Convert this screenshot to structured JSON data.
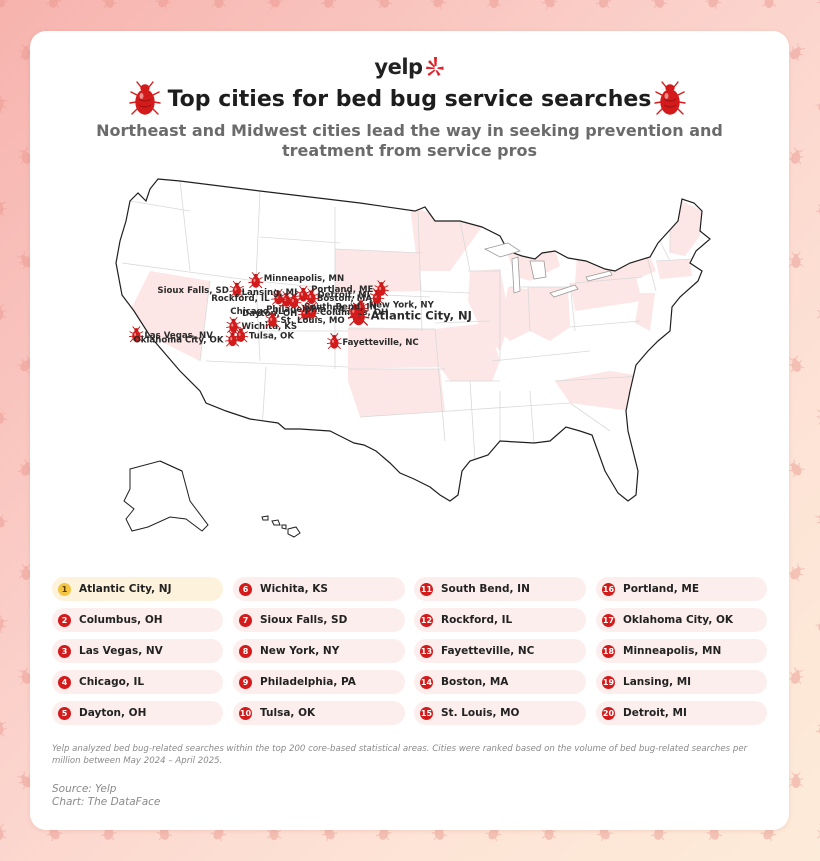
{
  "header": {
    "logo_text": "yelp",
    "title": "Top cities for bed bug service searches",
    "subtitle": "Northeast and Midwest cities lead the way in seeking prevention and treatment from service pros"
  },
  "colors": {
    "accent": "#d31b1b",
    "highlighted_state": "#fde6e6",
    "first_rank_badge": "#f4c542",
    "legend_pill": "#fdeeee",
    "first_legend_pill": "#fdf3dc"
  },
  "map": {
    "marker_icon": "bed-bug-icon",
    "cities": [
      {
        "rank": 1,
        "name": "Atlantic City, NJ",
        "lon": -74.42,
        "lat": 39.36
      },
      {
        "rank": 2,
        "name": "Columbus, OH",
        "lon": -82.99,
        "lat": 39.96
      },
      {
        "rank": 3,
        "name": "Las Vegas, NV",
        "lon": -115.14,
        "lat": 36.17
      },
      {
        "rank": 4,
        "name": "Chicago, IL",
        "lon": -87.63,
        "lat": 41.88
      },
      {
        "rank": 5,
        "name": "Dayton, OH",
        "lon": -84.19,
        "lat": 39.76
      },
      {
        "rank": 6,
        "name": "Wichita, KS",
        "lon": -97.34,
        "lat": 37.69
      },
      {
        "rank": 7,
        "name": "Sioux Falls, SD",
        "lon": -96.73,
        "lat": 43.55
      },
      {
        "rank": 8,
        "name": "New York, NY",
        "lon": -74.01,
        "lat": 40.71
      },
      {
        "rank": 9,
        "name": "Philadelphia, PA",
        "lon": -75.17,
        "lat": 39.95
      },
      {
        "rank": 10,
        "name": "Tulsa, OK",
        "lon": -95.99,
        "lat": 36.15
      },
      {
        "rank": 11,
        "name": "South Bend, IN",
        "lon": -86.25,
        "lat": 41.68
      },
      {
        "rank": 12,
        "name": "Rockford, IL",
        "lon": -89.09,
        "lat": 42.27
      },
      {
        "rank": 13,
        "name": "Fayetteville, NC",
        "lon": -78.88,
        "lat": 35.05
      },
      {
        "rank": 14,
        "name": "Boston, MA",
        "lon": -71.06,
        "lat": 42.36
      },
      {
        "rank": 15,
        "name": "St. Louis, MO",
        "lon": -90.2,
        "lat": 38.63
      },
      {
        "rank": 16,
        "name": "Portland, ME",
        "lon": -70.26,
        "lat": 43.66
      },
      {
        "rank": 17,
        "name": "Oklahoma City, OK",
        "lon": -97.52,
        "lat": 35.47
      },
      {
        "rank": 18,
        "name": "Minneapolis, MN",
        "lon": -93.27,
        "lat": 44.98
      },
      {
        "rank": 19,
        "name": "Lansing, MI",
        "lon": -84.56,
        "lat": 42.73
      },
      {
        "rank": 20,
        "name": "Detroit, MI",
        "lon": -83.05,
        "lat": 42.33
      }
    ]
  },
  "legend": [
    {
      "rank": "1",
      "name": "Atlantic City, NJ"
    },
    {
      "rank": "2",
      "name": "Columbus, OH"
    },
    {
      "rank": "3",
      "name": "Las Vegas, NV"
    },
    {
      "rank": "4",
      "name": "Chicago, IL"
    },
    {
      "rank": "5",
      "name": "Dayton, OH"
    },
    {
      "rank": "6",
      "name": "Wichita, KS"
    },
    {
      "rank": "7",
      "name": "Sioux Falls, SD"
    },
    {
      "rank": "8",
      "name": "New York, NY"
    },
    {
      "rank": "9",
      "name": "Philadelphia, PA"
    },
    {
      "rank": "10",
      "name": "Tulsa, OK"
    },
    {
      "rank": "11",
      "name": "South Bend, IN"
    },
    {
      "rank": "12",
      "name": "Rockford, IL"
    },
    {
      "rank": "13",
      "name": "Fayetteville, NC"
    },
    {
      "rank": "14",
      "name": "Boston, MA"
    },
    {
      "rank": "15",
      "name": "St. Louis, MO"
    },
    {
      "rank": "16",
      "name": "Portland, ME"
    },
    {
      "rank": "17",
      "name": "Oklahoma City, OK"
    },
    {
      "rank": "18",
      "name": "Minneapolis, MN"
    },
    {
      "rank": "19",
      "name": "Lansing, MI"
    },
    {
      "rank": "20",
      "name": "Detroit, MI"
    }
  ],
  "footer": {
    "methodology": "Yelp analyzed bed bug-related searches within the top 200 core-based statistical areas. Cities were ranked based on the volume of bed bug-related searches per million between May 2024 – April 2025.",
    "source": "Source: Yelp",
    "chart_credit": "Chart: The DataFace"
  }
}
